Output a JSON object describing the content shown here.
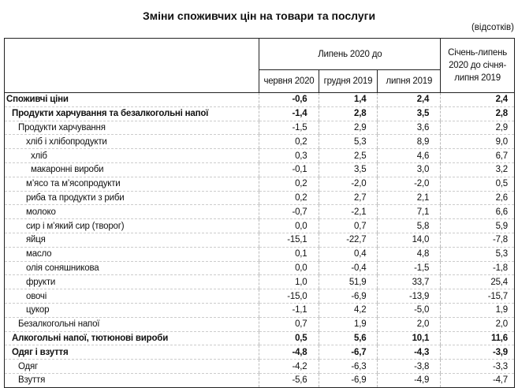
{
  "title": "Зміни споживчих цін на товари та послуги",
  "unit": "(відсотків)",
  "header": {
    "group": "Липень 2020 до",
    "cols": [
      "червня 2020",
      "грудня 2019",
      "липня 2019"
    ],
    "ytd": "Січень-липень 2020 до січня-липня 2019"
  },
  "rows": [
    {
      "label": "Споживчі ціни",
      "level": 0,
      "bold": true,
      "values": [
        "-0,6",
        "1,4",
        "2,4",
        "2,4"
      ]
    },
    {
      "label": "Продукти харчування та безалкогольні напої",
      "level": 1,
      "bold": true,
      "values": [
        "-1,4",
        "2,8",
        "3,5",
        "2,8"
      ]
    },
    {
      "label": "Продукти харчування",
      "level": 2,
      "bold": false,
      "values": [
        "-1,5",
        "2,9",
        "3,6",
        "2,9"
      ]
    },
    {
      "label": "хліб і хлібопродукти",
      "level": 3,
      "bold": false,
      "values": [
        "0,2",
        "5,3",
        "8,9",
        "9,0"
      ]
    },
    {
      "label": "хліб",
      "level": 4,
      "bold": false,
      "values": [
        "0,3",
        "2,5",
        "4,6",
        "6,7"
      ]
    },
    {
      "label": "макаронні вироби",
      "level": 4,
      "bold": false,
      "values": [
        "-0,1",
        "3,5",
        "3,0",
        "3,2"
      ]
    },
    {
      "label": "м’ясо та м’ясопродукти",
      "level": 3,
      "bold": false,
      "values": [
        "0,2",
        "-2,0",
        "-2,0",
        "0,5"
      ]
    },
    {
      "label": "риба та продукти з риби",
      "level": 3,
      "bold": false,
      "values": [
        "0,2",
        "2,7",
        "2,1",
        "2,6"
      ]
    },
    {
      "label": "молоко",
      "level": 3,
      "bold": false,
      "values": [
        "-0,7",
        "-2,1",
        "7,1",
        "6,6"
      ]
    },
    {
      "label": "сир і м’який сир (творог)",
      "level": 3,
      "bold": false,
      "values": [
        "0,0",
        "0,7",
        "5,8",
        "5,9"
      ]
    },
    {
      "label": "яйця",
      "level": 3,
      "bold": false,
      "values": [
        "-15,1",
        "-22,7",
        "14,0",
        "-7,8"
      ]
    },
    {
      "label": "масло",
      "level": 3,
      "bold": false,
      "values": [
        "0,1",
        "0,4",
        "4,8",
        "5,3"
      ]
    },
    {
      "label": "олія соняшникова",
      "level": 3,
      "bold": false,
      "values": [
        "0,0",
        "-0,4",
        "-1,5",
        "-1,8"
      ]
    },
    {
      "label": "фрукти",
      "level": 3,
      "bold": false,
      "values": [
        "1,0",
        "51,9",
        "33,7",
        "25,4"
      ]
    },
    {
      "label": "овочі",
      "level": 3,
      "bold": false,
      "values": [
        "-15,0",
        "-6,9",
        "-13,9",
        "-15,7"
      ]
    },
    {
      "label": "цукор",
      "level": 3,
      "bold": false,
      "values": [
        "-1,1",
        "4,2",
        "-5,0",
        "1,9"
      ]
    },
    {
      "label": "Безалкогольні напої",
      "level": 2,
      "bold": false,
      "values": [
        "0,7",
        "1,9",
        "2,0",
        "2,0"
      ]
    },
    {
      "label": "Алкогольні напої, тютюнові вироби",
      "level": 1,
      "bold": true,
      "values": [
        "0,5",
        "5,6",
        "10,1",
        "11,6"
      ]
    },
    {
      "label": "Одяг і взуття",
      "level": 1,
      "bold": true,
      "values": [
        "-4,8",
        "-6,7",
        "-4,3",
        "-3,9"
      ]
    },
    {
      "label": "Одяг",
      "level": 2,
      "bold": false,
      "values": [
        "-4,2",
        "-6,3",
        "-3,8",
        "-3,3"
      ]
    },
    {
      "label": "Взуття",
      "level": 2,
      "bold": false,
      "values": [
        "-5,6",
        "-6,9",
        "-4,9",
        "-4,7"
      ]
    }
  ]
}
